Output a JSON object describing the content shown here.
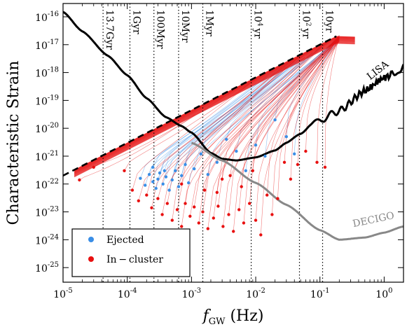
{
  "chart_data": {
    "type": "line",
    "ylabel": "Characteristic Strain",
    "xlabel_main": "f",
    "xlabel_sub": "GW",
    "xlabel_unit": " (Hz)",
    "xscale": "log",
    "yscale": "log",
    "xlim": [
      1e-05,
      2
    ],
    "ylim": [
      3e-26,
      3e-16
    ],
    "x_ticks": [
      {
        "value": 1e-05,
        "base": "10",
        "exp": "-5"
      },
      {
        "value": 0.0001,
        "base": "10",
        "exp": "-4"
      },
      {
        "value": 0.001,
        "base": "10",
        "exp": "-3"
      },
      {
        "value": 0.01,
        "base": "10",
        "exp": "-2"
      },
      {
        "value": 0.1,
        "base": "10",
        "exp": "-1"
      },
      {
        "value": 1,
        "base": "10",
        "exp": "0"
      }
    ],
    "y_ticks": [
      {
        "value": 1e-25,
        "base": "10",
        "exp": "-25"
      },
      {
        "value": 1e-24,
        "base": "10",
        "exp": "-24"
      },
      {
        "value": 1e-23,
        "base": "10",
        "exp": "-23"
      },
      {
        "value": 1e-22,
        "base": "10",
        "exp": "-22"
      },
      {
        "value": 1e-21,
        "base": "10",
        "exp": "-21"
      },
      {
        "value": 1e-20,
        "base": "10",
        "exp": "-20"
      },
      {
        "value": 1e-19,
        "base": "10",
        "exp": "-19"
      },
      {
        "value": 1e-18,
        "base": "10",
        "exp": "-18"
      },
      {
        "value": 1e-17,
        "base": "10",
        "exp": "-17"
      },
      {
        "value": 1e-16,
        "base": "10",
        "exp": "-16"
      }
    ],
    "time_markers": [
      {
        "f": 4.2e-05,
        "label": "13.7Gyr"
      },
      {
        "f": 0.00011,
        "label": "1Gyr"
      },
      {
        "f": 0.00026,
        "label": "100Myr"
      },
      {
        "f": 0.00063,
        "label": "10Myr"
      },
      {
        "f": 0.0015,
        "label": "1Myr"
      },
      {
        "f": 0.0085,
        "label": "10",
        "label_exp": "4",
        "label_unit": "yr"
      },
      {
        "f": 0.048,
        "label": "10",
        "label_exp": "2",
        "label_unit": "yr"
      },
      {
        "f": 0.11,
        "label": "10yr"
      }
    ],
    "curves": [
      {
        "name": "LISA",
        "color": "#000000",
        "x": [
          1e-05,
          2e-05,
          5e-05,
          0.0001,
          0.0002,
          0.0004,
          0.0007,
          0.001,
          0.002,
          0.003,
          0.005,
          0.01,
          0.02,
          0.03,
          0.05,
          0.07,
          0.1,
          0.2,
          0.5,
          1,
          2
        ],
        "y": [
          1.5e-16,
          3e-17,
          4e-18,
          8e-19,
          1.2e-19,
          2.5e-20,
          1.2e-20,
          7e-21,
          1.3e-21,
          8e-22,
          7e-22,
          9e-22,
          1.6e-21,
          3e-21,
          7e-21,
          1.2e-20,
          2e-20,
          4.2e-20,
          2.2e-19,
          6.5e-19,
          1.5e-18
        ]
      },
      {
        "name": "DECIGO",
        "color": "#888888",
        "x": [
          0.001,
          0.003,
          0.01,
          0.03,
          0.1,
          0.2,
          0.5,
          1,
          2
        ],
        "y": [
          3e-21,
          7e-22,
          1.1e-22,
          1.8e-23,
          2.2e-24,
          1e-24,
          1.2e-24,
          1.8e-24,
          3e-24
        ]
      },
      {
        "name": "",
        "color": "#000000",
        "style": "dashed",
        "x": [
          1e-05,
          0.18
        ],
        "y": [
          2e-22,
          2e-17
        ]
      }
    ],
    "legend": {
      "position": "bottom-left",
      "entries": [
        {
          "label": "Ejected",
          "color": "#3a8ee6"
        },
        {
          "label": "In − cluster",
          "color": "#e81010"
        }
      ]
    },
    "series": [
      {
        "name": "Ejected",
        "color": "#3a8ee6",
        "endpoints": [
          [
            0.00016,
            1.6e-22
          ],
          [
            0.00019,
            9e-23
          ],
          [
            0.00022,
            2.2e-22
          ],
          [
            0.00025,
            1.2e-22
          ],
          [
            0.00028,
            7e-23
          ],
          [
            0.00032,
            2.5e-22
          ],
          [
            0.00036,
            1e-22
          ],
          [
            0.0004,
            1.8e-22
          ],
          [
            0.00045,
            6e-23
          ],
          [
            0.0005,
            1.4e-22
          ],
          [
            0.00056,
            3e-22
          ],
          [
            0.00063,
            8e-23
          ],
          [
            0.0007,
            2e-22
          ],
          [
            0.0008,
            5e-22
          ],
          [
            0.0009,
            1.1e-22
          ],
          [
            0.0011,
            3.5e-22
          ],
          [
            0.0014,
            1.2e-21
          ],
          [
            0.0018,
            2.2e-22
          ],
          [
            0.0025,
            6e-22
          ],
          [
            0.0035,
            4e-21
          ],
          [
            0.005,
            1.5e-21
          ],
          [
            0.007,
            3e-22
          ],
          [
            0.01,
            2.5e-21
          ],
          [
            0.014,
            1e-21
          ],
          [
            0.02,
            2e-20
          ],
          [
            0.03,
            5e-21
          ],
          [
            0.04,
            1.2e-21
          ],
          [
            0.00025,
            4e-22
          ],
          [
            0.0003,
            1.5e-22
          ],
          [
            0.00038,
            3e-22
          ]
        ]
      },
      {
        "name": "In − cluster",
        "color": "#e81010",
        "endpoints": [
          [
            1.8e-05,
            1.4e-22
          ],
          [
            3e-05,
            4e-22
          ],
          [
            9e-05,
            3e-22
          ],
          [
            0.00012,
            6e-23
          ],
          [
            0.00015,
            2.5e-23
          ],
          [
            0.0002,
            4e-23
          ],
          [
            0.00024,
            1.4e-23
          ],
          [
            0.0003,
            3e-23
          ],
          [
            0.00035,
            8e-24
          ],
          [
            0.00042,
            2e-23
          ],
          [
            0.0005,
            5e-24
          ],
          [
            0.0006,
            1.2e-23
          ],
          [
            0.0007,
            3e-24
          ],
          [
            0.0008,
            2e-23
          ],
          [
            0.00095,
            7e-24
          ],
          [
            0.0011,
            1.5e-23
          ],
          [
            0.0013,
            4e-24
          ],
          [
            0.0015,
            1e-23
          ],
          [
            0.0018,
            2.5e-24
          ],
          [
            0.0022,
            6e-24
          ],
          [
            0.0026,
            1.6e-23
          ],
          [
            0.0031,
            3e-24
          ],
          [
            0.0038,
            8e-24
          ],
          [
            0.0045,
            2e-24
          ],
          [
            0.0055,
            1.2e-23
          ],
          [
            0.0065,
            4e-24
          ],
          [
            0.008,
            2e-23
          ],
          [
            0.01,
            5e-24
          ],
          [
            0.012,
            1.5e-24
          ],
          [
            0.015,
            4e-23
          ],
          [
            0.018,
            8e-24
          ],
          [
            0.022,
            3e-23
          ],
          [
            0.028,
            6e-22
          ],
          [
            0.035,
            1.5e-22
          ],
          [
            0.045,
            5e-22
          ],
          [
            0.06,
            1.5e-21
          ],
          [
            0.09,
            6e-22
          ],
          [
            0.12,
            4e-22
          ],
          [
            0.0025,
            5e-23
          ],
          [
            0.004,
            2e-22
          ],
          [
            0.006,
            8e-23
          ],
          [
            0.009,
            3e-22
          ],
          [
            0.0016,
            6e-23
          ],
          [
            0.0007,
            1e-22
          ],
          [
            0.003,
            1.5e-22
          ]
        ]
      }
    ]
  }
}
